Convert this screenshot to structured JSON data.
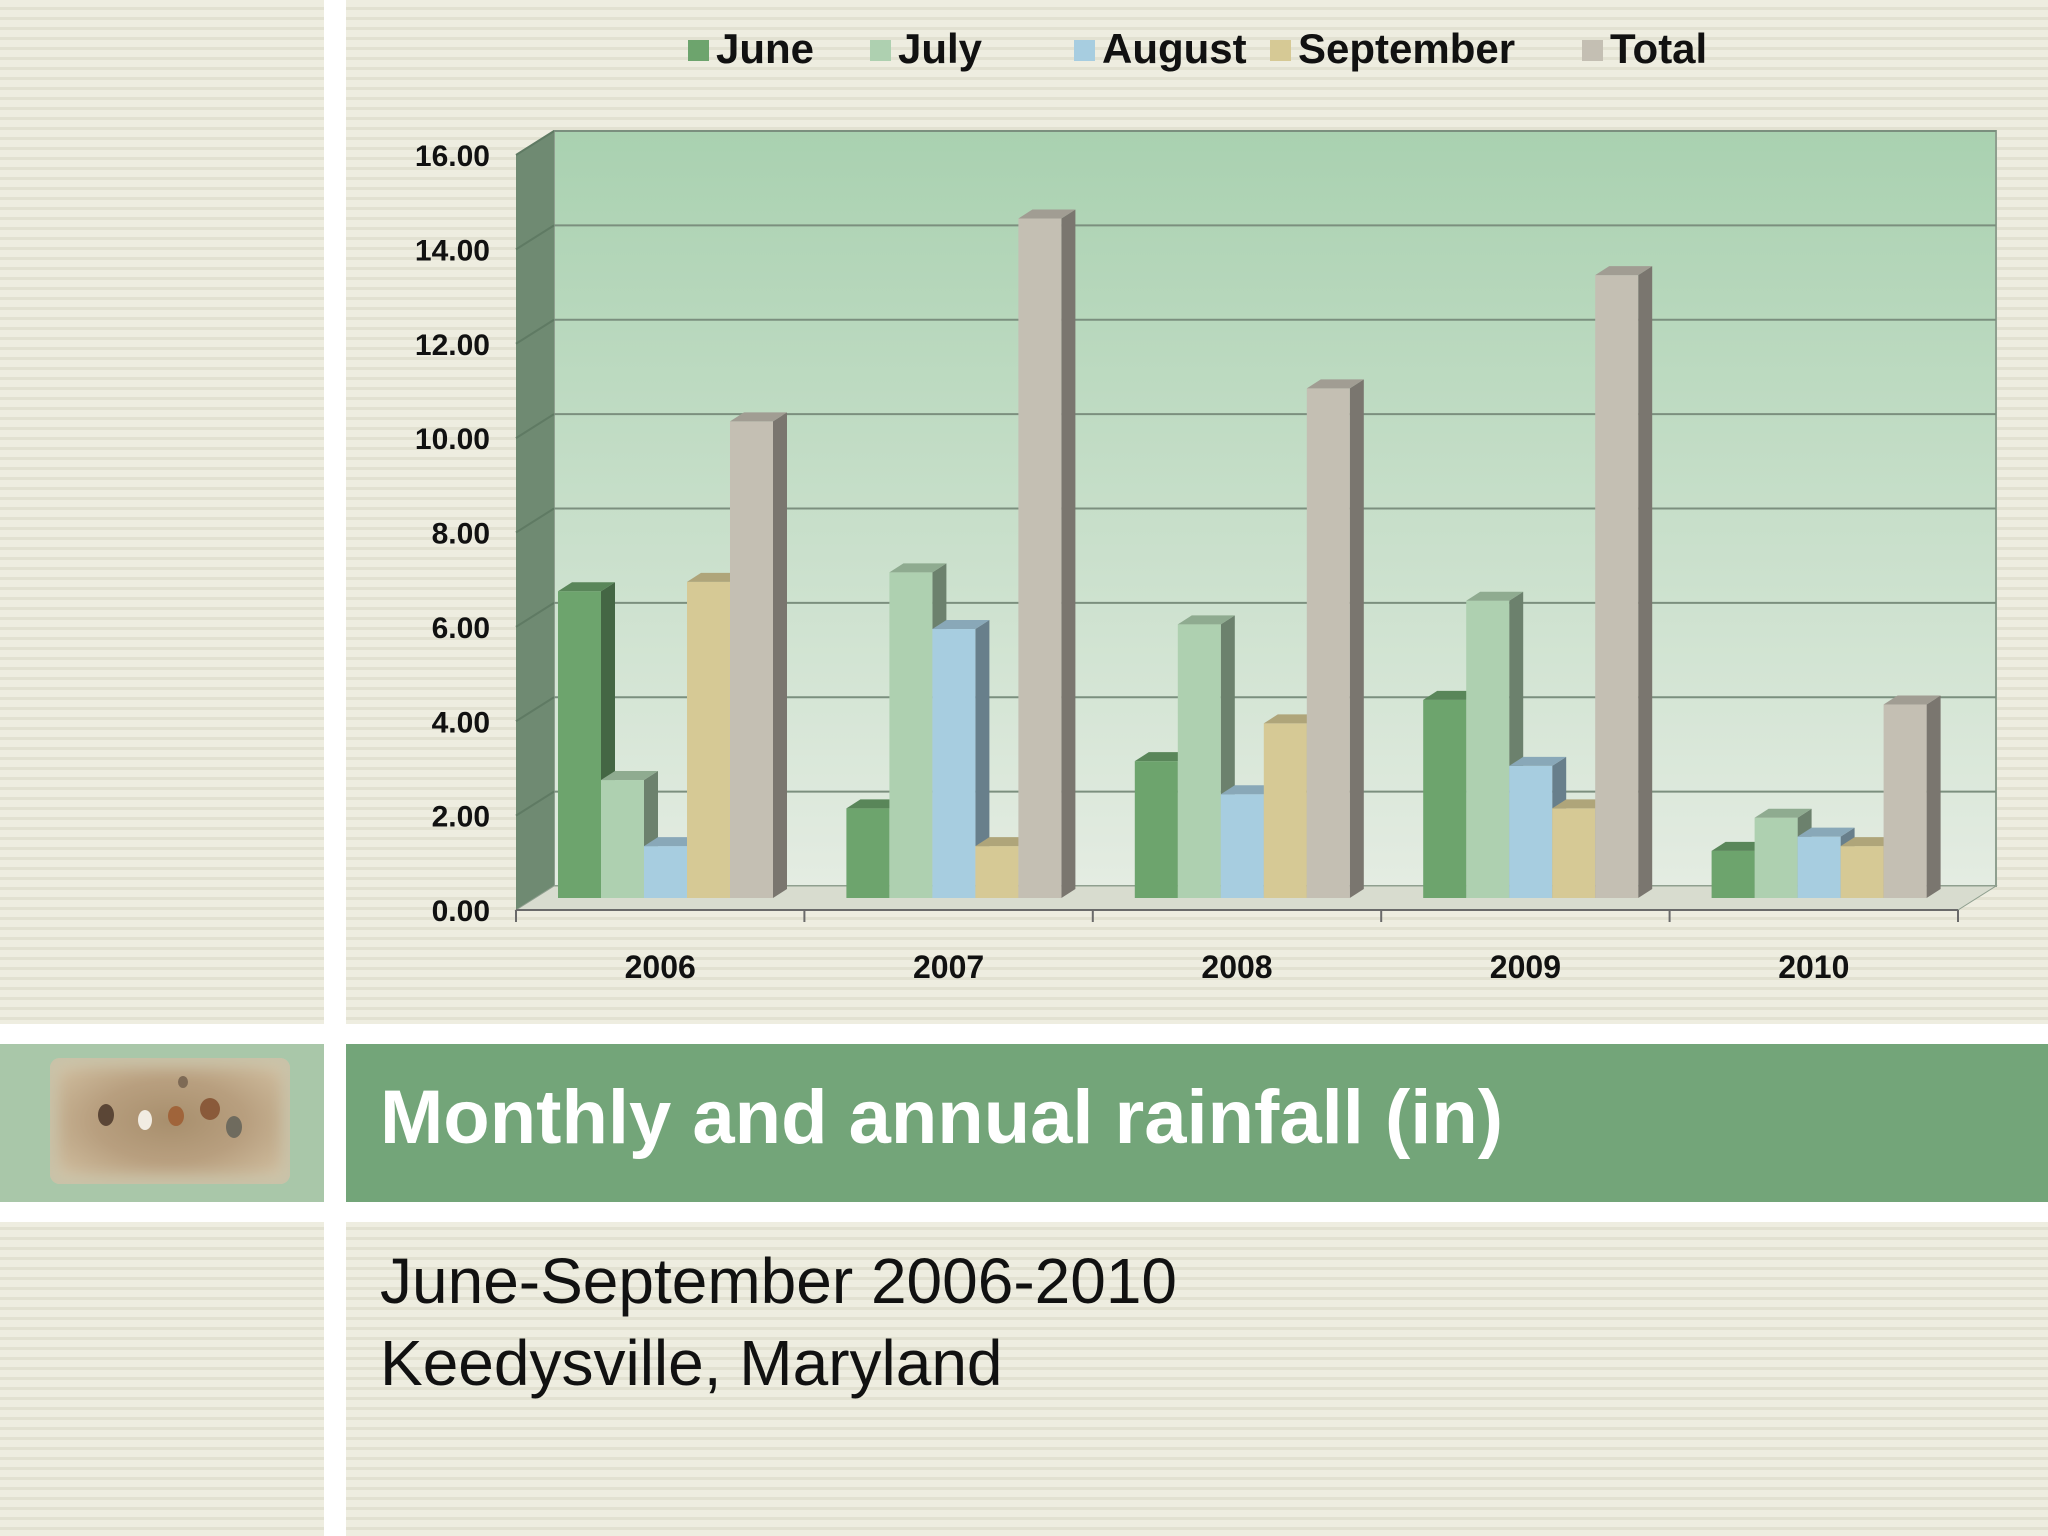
{
  "slide": {
    "title": "Monthly and annual rainfall (in)",
    "subtitle_line1": "June-September 2006-2010",
    "subtitle_line2": "Keedysville, Maryland"
  },
  "colors": {
    "June": "#6da46d",
    "July": "#aed0b0",
    "August": "#a7cde0",
    "September": "#d6c995",
    "Total": "#c4bfb3",
    "banner": "#73a579",
    "plot_top": "#a9d1b0",
    "plot_bottom": "#e4ece2"
  },
  "chart_data": {
    "type": "bar",
    "categories": [
      "2006",
      "2007",
      "2008",
      "2009",
      "2010"
    ],
    "series": [
      {
        "name": "June",
        "values": [
          6.5,
          1.9,
          2.9,
          4.2,
          1.0
        ]
      },
      {
        "name": "July",
        "values": [
          2.5,
          6.9,
          5.8,
          6.3,
          1.7
        ]
      },
      {
        "name": "August",
        "values": [
          1.1,
          5.7,
          2.2,
          2.8,
          1.3
        ]
      },
      {
        "name": "September",
        "values": [
          6.7,
          1.1,
          3.7,
          1.9,
          1.1
        ]
      },
      {
        "name": "Total",
        "values": [
          10.1,
          14.4,
          10.8,
          13.2,
          4.1
        ]
      }
    ],
    "yticks": [
      "0.00",
      "2.00",
      "4.00",
      "6.00",
      "8.00",
      "10.00",
      "12.00",
      "14.00",
      "16.00"
    ],
    "ylim": [
      0,
      16
    ],
    "legend_position": "top",
    "grid": true,
    "three_d": true
  }
}
